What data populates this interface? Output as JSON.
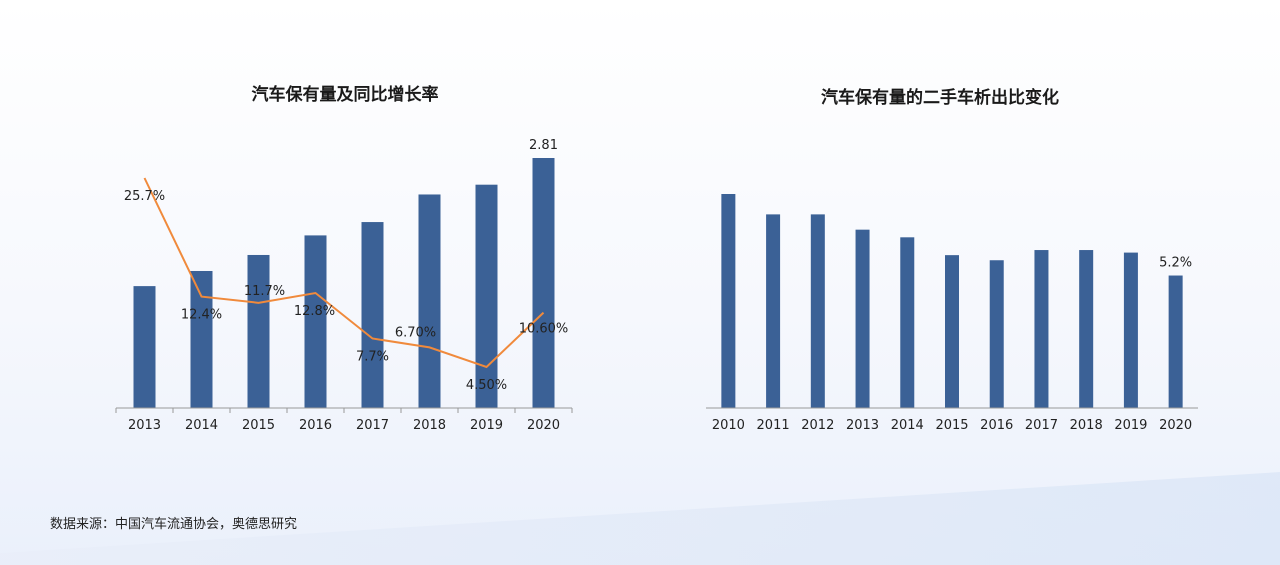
{
  "source": "数据来源：中国汽车流通协会，奥德思研究",
  "colors": {
    "bar": "#3b6196",
    "line": "#f08a3c",
    "axis": "#999999"
  },
  "chart_data": [
    {
      "type": "bar+line",
      "title": "汽车保有量及同比增长率",
      "categories": [
        "2013",
        "2014",
        "2015",
        "2016",
        "2017",
        "2018",
        "2019",
        "2020"
      ],
      "bars": {
        "values": [
          1.37,
          1.54,
          1.72,
          1.94,
          2.09,
          2.4,
          2.51,
          2.81
        ],
        "labels": [
          "",
          "",
          "",
          "",
          "",
          "",
          "",
          "2.81"
        ]
      },
      "line": {
        "values": [
          25.7,
          12.4,
          11.7,
          12.8,
          7.7,
          6.7,
          4.5,
          10.6
        ],
        "labels": [
          "25.7%",
          "12.4%",
          "11.7%",
          "12.8%",
          "7.7%",
          "6.70%",
          "4.50%",
          "10.60%"
        ]
      },
      "bar_ylim": [
        0,
        2.81
      ],
      "line_ylim": [
        0,
        28
      ]
    },
    {
      "type": "bar",
      "title": "汽车保有量的二手车析出比变化",
      "categories": [
        "2010",
        "2011",
        "2012",
        "2013",
        "2014",
        "2015",
        "2016",
        "2017",
        "2018",
        "2019",
        "2020"
      ],
      "values": [
        8.4,
        7.6,
        7.6,
        7.0,
        6.7,
        6.0,
        5.8,
        6.2,
        6.2,
        6.1,
        5.2
      ],
      "labels": [
        "",
        "",
        "",
        "",
        "",
        "",
        "",
        "",
        "",
        "",
        "5.2%"
      ],
      "ylim": [
        0,
        8.4
      ]
    }
  ]
}
